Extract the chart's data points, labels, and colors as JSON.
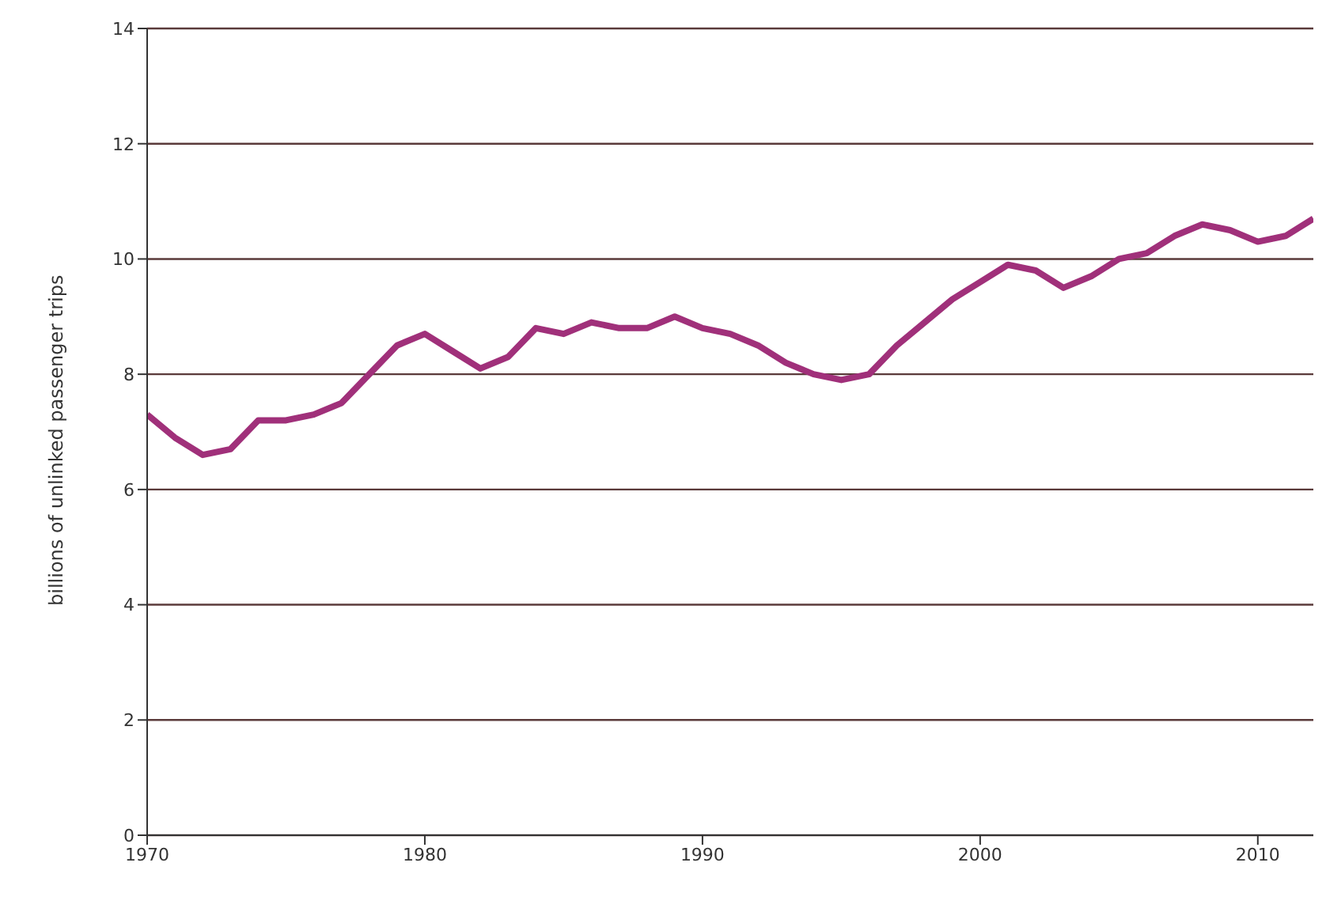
{
  "chart_data": {
    "type": "line",
    "ylabel": "billions of unlinked passenger trips",
    "x": [
      1970,
      1971,
      1972,
      1973,
      1974,
      1975,
      1976,
      1977,
      1978,
      1979,
      1980,
      1981,
      1982,
      1983,
      1984,
      1985,
      1986,
      1987,
      1988,
      1989,
      1990,
      1991,
      1992,
      1993,
      1994,
      1995,
      1996,
      1997,
      1998,
      1999,
      2000,
      2001,
      2002,
      2003,
      2004,
      2005,
      2006,
      2007,
      2008,
      2009,
      2010,
      2011,
      2012
    ],
    "series": [
      {
        "color": "#a0307a",
        "values": [
          7.3,
          6.9,
          6.6,
          6.7,
          7.2,
          7.2,
          7.3,
          7.5,
          8.0,
          8.5,
          8.7,
          8.4,
          8.1,
          8.3,
          8.8,
          8.7,
          8.9,
          8.8,
          8.8,
          9.0,
          8.8,
          8.7,
          8.5,
          8.2,
          8.0,
          7.9,
          8.0,
          8.5,
          8.9,
          9.3,
          9.6,
          9.9,
          9.8,
          9.5,
          9.7,
          10.0,
          10.1,
          10.4,
          10.6,
          10.5,
          10.3,
          10.4,
          10.7
        ]
      }
    ],
    "xlim": [
      1970,
      2012
    ],
    "xticks": [
      1970,
      1980,
      1990,
      2000,
      2010
    ],
    "ylim": [
      0,
      14
    ],
    "yticks": [
      0,
      2,
      4,
      6,
      8,
      10,
      12,
      14
    ],
    "grid": "y",
    "legend": false,
    "marker": "none",
    "line_style": "solid"
  }
}
